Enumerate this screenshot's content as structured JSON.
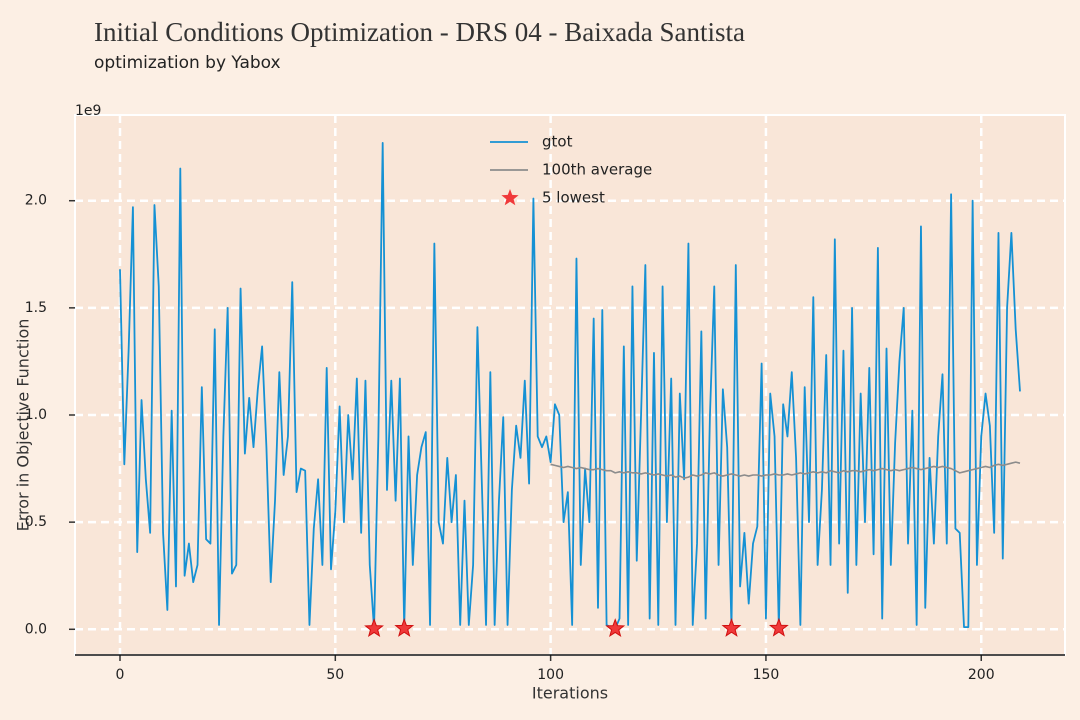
{
  "chart_data": {
    "type": "line",
    "title": "Initial Conditions Optimization - DRS 04 - Baixada Santista",
    "subtitle": "optimization by Yabox",
    "xlabel": "Iterations",
    "ylabel": "Error in Objective Function",
    "y_offset_text": "1e9",
    "xlim": [
      -10.45,
      219.45
    ],
    "ylim": [
      -0.12,
      2.4
    ],
    "xticks": [
      0,
      50,
      100,
      150,
      200
    ],
    "yticks": [
      {
        "value": 0,
        "label": "0.0"
      },
      0.5,
      {
        "value": 1,
        "label": "1.0"
      },
      1.5,
      {
        "value": 2,
        "label": "2.0"
      }
    ],
    "grid": true,
    "legend_loc": "upper center",
    "series": [
      {
        "name": "gtot",
        "color": "#1591d4",
        "kind": "line",
        "x": [
          0,
          1,
          2,
          3,
          4,
          5,
          6,
          7,
          8,
          9,
          10,
          11,
          12,
          13,
          14,
          15,
          16,
          17,
          18,
          19,
          20,
          21,
          22,
          23,
          24,
          25,
          26,
          27,
          28,
          29,
          30,
          31,
          32,
          33,
          34,
          35,
          36,
          37,
          38,
          39,
          40,
          41,
          42,
          43,
          44,
          45,
          46,
          47,
          48,
          49,
          50,
          51,
          52,
          53,
          54,
          55,
          56,
          57,
          58,
          59,
          60,
          61,
          62,
          63,
          64,
          65,
          66,
          67,
          68,
          69,
          70,
          71,
          72,
          73,
          74,
          75,
          76,
          77,
          78,
          79,
          80,
          81,
          82,
          83,
          84,
          85,
          86,
          87,
          88,
          89,
          90,
          91,
          92,
          93,
          94,
          95,
          96,
          97,
          98,
          99,
          100,
          101,
          102,
          103,
          104,
          105,
          106,
          107,
          108,
          109,
          110,
          111,
          112,
          113,
          114,
          115,
          116,
          117,
          118,
          119,
          120,
          121,
          122,
          123,
          124,
          125,
          126,
          127,
          128,
          129,
          130,
          131,
          132,
          133,
          134,
          135,
          136,
          137,
          138,
          139,
          140,
          141,
          142,
          143,
          144,
          145,
          146,
          147,
          148,
          149,
          150,
          151,
          152,
          153,
          154,
          155,
          156,
          157,
          158,
          159,
          160,
          161,
          162,
          163,
          164,
          165,
          166,
          167,
          168,
          169,
          170,
          171,
          172,
          173,
          174,
          175,
          176,
          177,
          178,
          179,
          180,
          181,
          182,
          183,
          184,
          185,
          186,
          187,
          188,
          189,
          190,
          191,
          192,
          193,
          194,
          195,
          196,
          197,
          198,
          199,
          200,
          201,
          202,
          203,
          204,
          205,
          206,
          207,
          208,
          209
        ],
        "values": [
          1.68,
          0.77,
          1.3,
          1.97,
          0.36,
          1.07,
          0.7,
          0.45,
          1.98,
          1.6,
          0.45,
          0.09,
          1.02,
          0.2,
          2.15,
          0.25,
          0.4,
          0.22,
          0.3,
          1.13,
          0.42,
          0.4,
          1.4,
          0.02,
          0.9,
          1.5,
          0.26,
          0.3,
          1.59,
          0.82,
          1.08,
          0.85,
          1.12,
          1.32,
          0.85,
          0.22,
          0.6,
          1.2,
          0.72,
          0.9,
          1.62,
          0.64,
          0.75,
          0.74,
          0.02,
          0.47,
          0.7,
          0.3,
          1.22,
          0.28,
          0.55,
          1.04,
          0.5,
          1.0,
          0.7,
          1.17,
          0.45,
          1.16,
          0.3,
          0.003,
          0.9,
          2.27,
          0.65,
          1.16,
          0.6,
          1.17,
          0.004,
          0.9,
          0.3,
          0.72,
          0.85,
          0.92,
          0.02,
          1.8,
          0.5,
          0.4,
          0.8,
          0.5,
          0.72,
          0.02,
          0.6,
          0.02,
          0.3,
          1.41,
          0.7,
          0.02,
          1.2,
          0.02,
          0.6,
          0.99,
          0.02,
          0.65,
          0.95,
          0.8,
          1.16,
          0.68,
          2.01,
          0.9,
          0.85,
          0.9,
          0.78,
          1.05,
          1.0,
          0.5,
          0.64,
          0.02,
          1.73,
          0.3,
          0.75,
          0.5,
          1.45,
          0.1,
          1.49,
          0.02,
          0.01,
          0.003,
          0.05,
          1.32,
          0.02,
          1.6,
          0.32,
          1.0,
          1.7,
          0.05,
          1.29,
          0.02,
          1.6,
          0.5,
          1.17,
          0.02,
          1.1,
          0.7,
          1.8,
          0.02,
          0.4,
          1.39,
          0.05,
          1.0,
          1.6,
          0.3,
          1.12,
          0.85,
          0.004,
          1.7,
          0.2,
          0.45,
          0.12,
          0.4,
          0.48,
          1.24,
          0.05,
          1.1,
          0.9,
          0.005,
          1.05,
          0.9,
          1.2,
          0.8,
          0.02,
          1.13,
          0.5,
          1.55,
          0.3,
          0.65,
          1.28,
          0.3,
          1.82,
          0.4,
          1.3,
          0.17,
          1.5,
          0.3,
          1.1,
          0.5,
          1.22,
          0.35,
          1.78,
          0.05,
          1.31,
          0.3,
          0.87,
          1.25,
          1.5,
          0.4,
          1.02,
          0.02,
          1.88,
          0.1,
          0.8,
          0.4,
          0.9,
          1.19,
          0.4,
          2.03,
          0.47,
          0.45,
          0.01,
          0.01,
          2.0,
          0.3,
          0.9,
          1.1,
          0.95,
          0.45,
          1.85,
          0.33,
          1.5,
          1.85,
          1.4,
          1.11
        ]
      },
      {
        "name": "100th average",
        "color": "#8c8c8c",
        "kind": "line",
        "x": [
          100,
          101,
          102,
          103,
          104,
          105,
          106,
          107,
          108,
          109,
          110,
          111,
          112,
          113,
          114,
          115,
          116,
          117,
          118,
          119,
          120,
          121,
          122,
          123,
          124,
          125,
          126,
          127,
          128,
          129,
          130,
          131,
          132,
          133,
          134,
          135,
          136,
          137,
          138,
          139,
          140,
          141,
          142,
          143,
          144,
          145,
          146,
          147,
          148,
          149,
          150,
          151,
          152,
          153,
          154,
          155,
          156,
          157,
          158,
          159,
          160,
          161,
          162,
          163,
          164,
          165,
          166,
          167,
          168,
          169,
          170,
          171,
          172,
          173,
          174,
          175,
          176,
          177,
          178,
          179,
          180,
          181,
          182,
          183,
          184,
          185,
          186,
          187,
          188,
          189,
          190,
          191,
          192,
          193,
          194,
          195,
          196,
          197,
          198,
          199,
          200,
          201,
          202,
          203,
          204,
          205,
          206,
          207,
          208,
          209
        ],
        "values": [
          0.77,
          0.765,
          0.76,
          0.755,
          0.76,
          0.755,
          0.75,
          0.755,
          0.75,
          0.745,
          0.745,
          0.75,
          0.745,
          0.74,
          0.74,
          0.73,
          0.735,
          0.73,
          0.735,
          0.73,
          0.73,
          0.725,
          0.73,
          0.725,
          0.72,
          0.725,
          0.72,
          0.715,
          0.72,
          0.71,
          0.715,
          0.705,
          0.71,
          0.72,
          0.715,
          0.72,
          0.73,
          0.725,
          0.73,
          0.72,
          0.715,
          0.72,
          0.725,
          0.72,
          0.715,
          0.72,
          0.715,
          0.72,
          0.72,
          0.715,
          0.72,
          0.72,
          0.725,
          0.72,
          0.72,
          0.725,
          0.72,
          0.725,
          0.73,
          0.725,
          0.73,
          0.735,
          0.73,
          0.735,
          0.73,
          0.74,
          0.735,
          0.73,
          0.74,
          0.735,
          0.74,
          0.74,
          0.735,
          0.74,
          0.745,
          0.74,
          0.745,
          0.75,
          0.745,
          0.74,
          0.745,
          0.74,
          0.745,
          0.75,
          0.755,
          0.75,
          0.745,
          0.75,
          0.755,
          0.76,
          0.755,
          0.76,
          0.755,
          0.75,
          0.74,
          0.73,
          0.735,
          0.74,
          0.745,
          0.75,
          0.755,
          0.76,
          0.755,
          0.765,
          0.77,
          0.765,
          0.77,
          0.775,
          0.78,
          0.775
        ]
      },
      {
        "name": "5 lowest",
        "color": "#f0393a",
        "kind": "star",
        "x": [
          59,
          66,
          115,
          142,
          153
        ],
        "values": [
          0.003,
          0.004,
          0.003,
          0.004,
          0.005
        ]
      }
    ]
  }
}
